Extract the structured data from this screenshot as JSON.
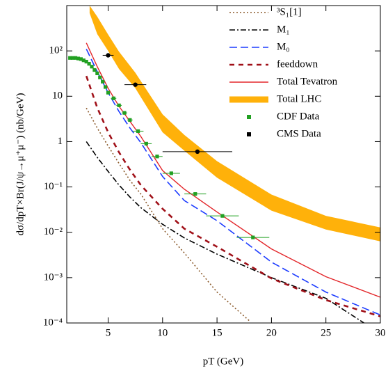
{
  "chart_data": {
    "type": "line",
    "x_label": "pT (GeV)",
    "y_label": "dσ/dpT×Br(J/ψ→μ⁺μ⁻) (nb/GeV)",
    "xlim": [
      1.2,
      30
    ],
    "xticks": [
      5,
      10,
      15,
      20,
      25,
      30
    ],
    "ylim": [
      0.0001,
      1000
    ],
    "log_y": true,
    "yticks": [
      {
        "value": 0.0001,
        "label": "10⁻⁴"
      },
      {
        "value": 0.001,
        "label": "10⁻³"
      },
      {
        "value": 0.01,
        "label": "10⁻²"
      },
      {
        "value": 0.1,
        "label": "10⁻¹"
      },
      1,
      10,
      {
        "value": 100,
        "label": "10²"
      }
    ],
    "series": [
      {
        "name": "³S₁[1]",
        "kind": "line",
        "color": "#8b5a2b",
        "style": "dotted",
        "x": [
          3,
          4,
          5,
          6,
          7,
          8,
          10,
          12,
          15,
          18
        ],
        "values": [
          5.5,
          2,
          0.8,
          0.33,
          0.14,
          0.07,
          0.012,
          0.0035,
          0.00048,
          0.00011
        ]
      },
      {
        "name": "M₁",
        "kind": "line",
        "color": "#000000",
        "style": "dashdot",
        "x": [
          3,
          4,
          5,
          6,
          7,
          8,
          10,
          12,
          15,
          20,
          25,
          28.5
        ],
        "values": [
          1.0,
          0.45,
          0.22,
          0.11,
          0.06,
          0.035,
          0.015,
          0.0075,
          0.0033,
          0.001,
          0.00035,
          0.0001
        ]
      },
      {
        "name": "M₀",
        "kind": "line",
        "color": "#1c3cff",
        "style": "dashed",
        "x": [
          3,
          4,
          5,
          6,
          7,
          8,
          10,
          12,
          15,
          20,
          25,
          30
        ],
        "values": [
          110,
          35,
          12,
          4.6,
          2,
          0.95,
          0.17,
          0.05,
          0.018,
          0.0022,
          0.00048,
          0.00015
        ]
      },
      {
        "name": "feeddown",
        "kind": "line",
        "color": "#a01018",
        "style": "thickdashed",
        "x": [
          3,
          4,
          5,
          6,
          7,
          8,
          10,
          12,
          15,
          20,
          25,
          30
        ],
        "values": [
          28,
          5.6,
          1.6,
          0.58,
          0.24,
          0.11,
          0.033,
          0.012,
          0.0048,
          0.00096,
          0.00032,
          0.00014
        ]
      },
      {
        "name": "Total Tevatron",
        "kind": "line",
        "color": "#e3262a",
        "style": "solid",
        "x": [
          3,
          4,
          5,
          6,
          7,
          8,
          10,
          12,
          15,
          20,
          25,
          30
        ],
        "values": [
          150,
          45,
          15,
          6,
          2.8,
          1.3,
          0.23,
          0.089,
          0.028,
          0.0043,
          0.00105,
          0.00037
        ]
      },
      {
        "name": "Total LHC",
        "kind": "band",
        "color": "#ffb10a",
        "x": [
          3.3,
          4,
          5,
          6,
          7.5,
          10,
          12,
          15,
          20,
          25,
          30
        ],
        "high": [
          1000,
          570,
          230,
          96,
          33,
          4,
          1.4,
          0.37,
          0.068,
          0.023,
          0.0128
        ],
        "low": [
          680,
          235,
          100,
          40,
          15,
          1.6,
          0.63,
          0.16,
          0.03,
          0.0115,
          0.0063
        ]
      },
      {
        "name": "CDF Data",
        "kind": "points",
        "color": "#22a022",
        "marker": "square",
        "x": [
          1.5,
          1.75,
          2,
          2.25,
          2.5,
          2.75,
          3,
          3.25,
          3.5,
          3.75,
          4,
          4.25,
          4.5,
          4.75,
          5,
          5.5,
          6,
          6.5,
          7,
          7.75,
          8.5,
          9.5,
          10.8,
          13,
          15.5,
          18.3
        ],
        "xerr": [
          0.125,
          0.125,
          0.125,
          0.125,
          0.125,
          0.125,
          0.125,
          0.125,
          0.125,
          0.125,
          0.125,
          0.125,
          0.125,
          0.125,
          0.125,
          0.25,
          0.25,
          0.25,
          0.25,
          0.5,
          0.5,
          0.5,
          0.8,
          1,
          1.5,
          1.5
        ],
        "values": [
          70,
          70,
          70,
          68,
          66,
          62,
          58,
          52,
          45,
          38,
          32,
          26,
          21,
          16,
          12,
          9,
          6.3,
          4.3,
          3,
          1.7,
          0.9,
          0.47,
          0.2,
          0.07,
          0.023,
          0.0077
        ]
      },
      {
        "name": "CMS Data",
        "kind": "points",
        "color": "#000000",
        "marker": "circle",
        "x": [
          5,
          7.5,
          13.2
        ],
        "xerr": [
          0.5,
          1,
          3.2
        ],
        "values": [
          80,
          18,
          0.6
        ]
      }
    ]
  }
}
